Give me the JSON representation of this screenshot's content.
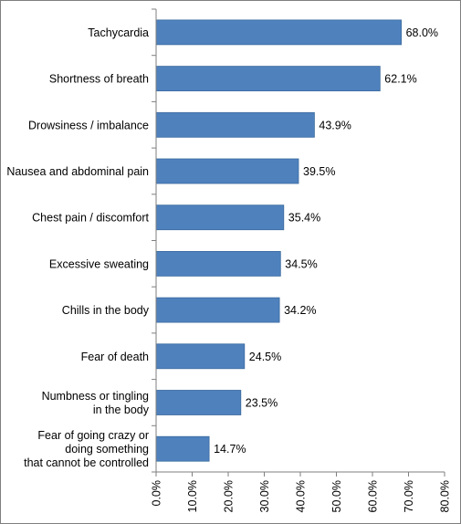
{
  "chart_data": {
    "type": "bar",
    "orientation": "horizontal",
    "categories": [
      [
        "Tachycardia"
      ],
      [
        "Shortness of breath"
      ],
      [
        "Drowsiness / imbalance"
      ],
      [
        "Nausea and abdominal pain"
      ],
      [
        "Chest pain / discomfort"
      ],
      [
        "Excessive sweating"
      ],
      [
        "Chills in the body"
      ],
      [
        "Fear of death"
      ],
      [
        "Numbness or tingling",
        "in the body"
      ],
      [
        "Fear of going crazy or",
        "doing something",
        "that cannot be controlled"
      ]
    ],
    "values": [
      68.0,
      62.1,
      43.9,
      39.5,
      35.4,
      34.5,
      34.2,
      24.5,
      23.5,
      14.7
    ],
    "value_labels": [
      "68.0%",
      "62.1%",
      "43.9%",
      "39.5%",
      "35.4%",
      "34.5%",
      "34.2%",
      "24.5%",
      "23.5%",
      "14.7%"
    ],
    "xlim": [
      0,
      80
    ],
    "x_ticks": [
      0,
      10,
      20,
      30,
      40,
      50,
      60,
      70,
      80
    ],
    "x_tick_labels": [
      "0.0%",
      "10.0%",
      "20.0%",
      "30.0%",
      "40.0%",
      "50.0%",
      "60.0%",
      "70.0%",
      "80.0%"
    ],
    "title": "",
    "xlabel": "",
    "ylabel": "",
    "grid": false,
    "legend": "none",
    "bar_color": "#4f81bd",
    "bar_edge_color": "#3a6a9e",
    "axis_color": "#7f7f7f"
  }
}
